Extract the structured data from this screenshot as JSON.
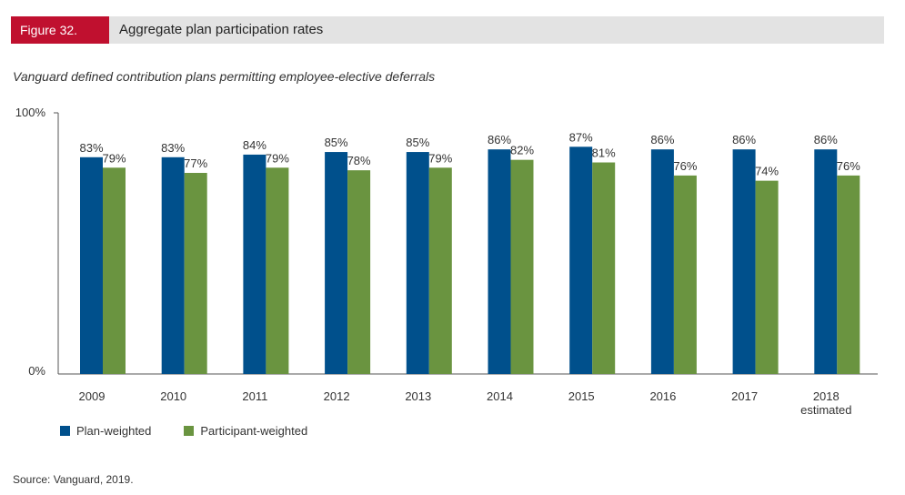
{
  "header": {
    "figure_label": "Figure 32.",
    "title": "Aggregate plan participation rates",
    "label_color": "#c0102f"
  },
  "subtitle": "Vanguard defined contribution plans permitting employee-elective deferrals",
  "source": "Source: Vanguard, 2019.",
  "chart_data": {
    "type": "bar",
    "categories": [
      "2009",
      "2010",
      "2011",
      "2012",
      "2013",
      "2014",
      "2015",
      "2016",
      "2017",
      "2018\nestimated"
    ],
    "series": [
      {
        "name": "Plan-weighted",
        "color": "#00508c",
        "values": [
          83,
          83,
          84,
          85,
          85,
          86,
          87,
          86,
          86,
          86
        ]
      },
      {
        "name": "Participant-weighted",
        "color": "#6a9440",
        "values": [
          79,
          77,
          79,
          78,
          79,
          82,
          81,
          76,
          74,
          76
        ]
      }
    ],
    "ylim": [
      0,
      100
    ],
    "yticks": [
      "0%",
      "100%"
    ],
    "value_suffix": "%",
    "grid": false,
    "legend_position": "bottom-left"
  }
}
